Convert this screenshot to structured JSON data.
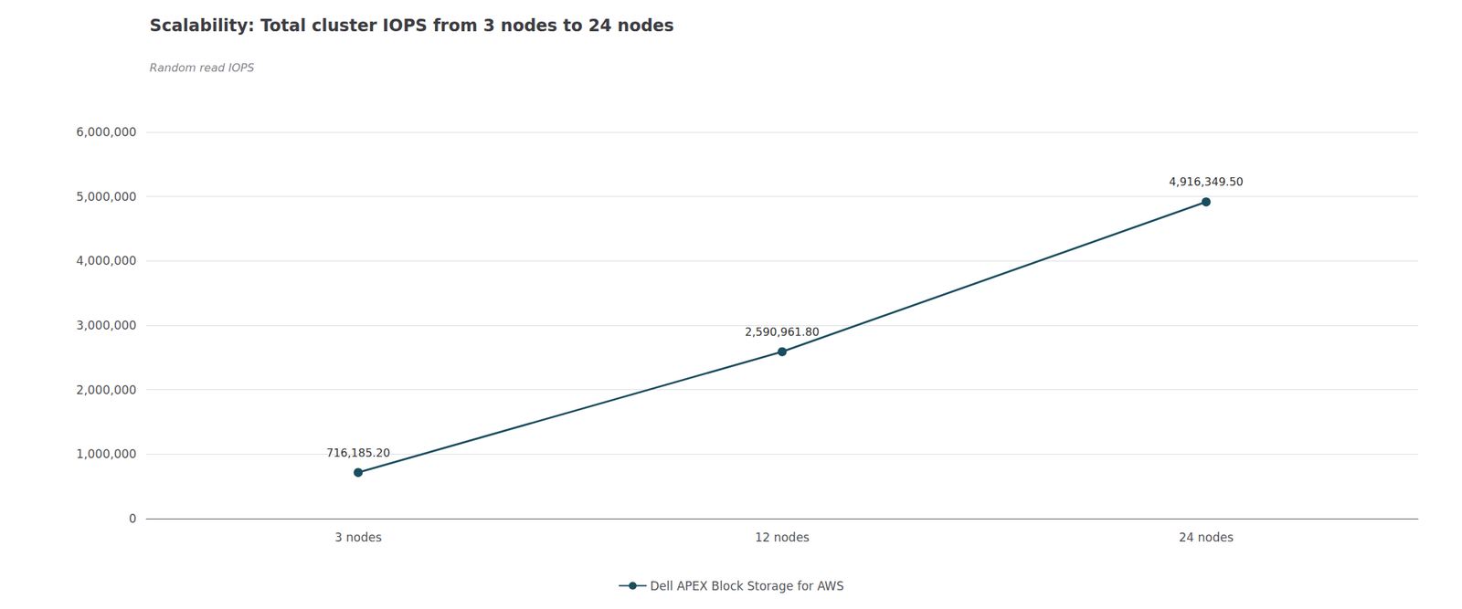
{
  "chart_data": {
    "type": "line",
    "title": "Scalability: Total cluster IOPS from 3 nodes to 24 nodes",
    "subtitle": "Random read IOPS",
    "categories": [
      "3 nodes",
      "12 nodes",
      "24 nodes"
    ],
    "series": [
      {
        "name": "Dell APEX Block Storage for AWS",
        "color": "#1a4d5e",
        "marker": "circle",
        "values": [
          716185.2,
          2590961.8,
          4916349.5
        ],
        "value_labels": [
          "716,185.20",
          "2,590,961.80",
          "4,916,349.50"
        ]
      }
    ],
    "ylim": [
      0,
      6000000
    ],
    "yticks": [
      0,
      {
        "value": 1000000,
        "label": "1,000,000"
      },
      {
        "value": 2000000,
        "label": "2,000,000"
      },
      {
        "value": 3000000,
        "label": "3,000,000"
      },
      {
        "value": 4000000,
        "label": "4,000,000"
      },
      {
        "value": 5000000,
        "label": "5,000,000"
      },
      {
        "value": 6000000,
        "label": "6,000,000"
      }
    ],
    "grid": true,
    "legend": "bottom",
    "data_labels": true
  }
}
